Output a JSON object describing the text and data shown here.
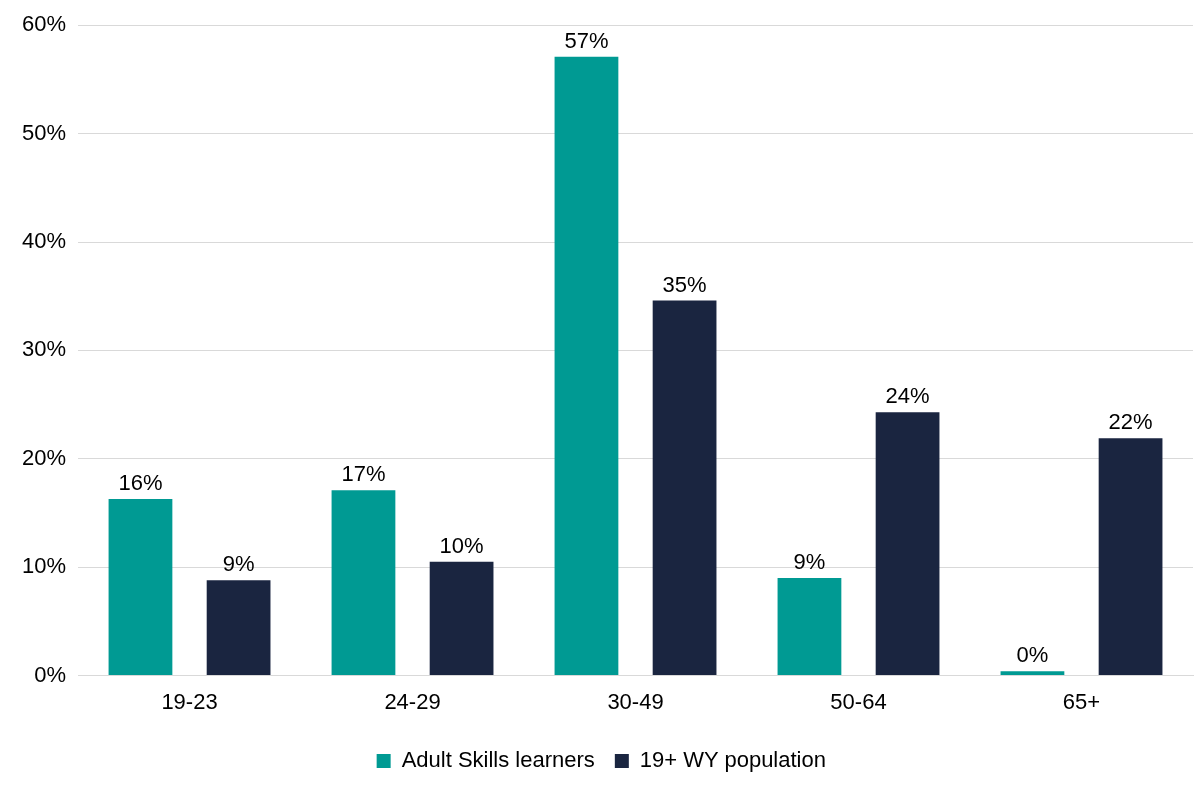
{
  "chart_data": {
    "type": "bar",
    "categories": [
      "19-23",
      "24-29",
      "30-49",
      "50-64",
      "65+"
    ],
    "series": [
      {
        "name": "Adult Skills learners",
        "color": "#009a93",
        "values": [
          16.3,
          17.1,
          57.1,
          9.0,
          0.4
        ],
        "value_labels": [
          "16%",
          "17%",
          "57%",
          "9%",
          "0%"
        ]
      },
      {
        "name": "19+ WY population",
        "color": "#1a2540",
        "values": [
          8.8,
          10.5,
          34.6,
          24.3,
          21.9
        ],
        "value_labels": [
          "9%",
          "10%",
          "35%",
          "24%",
          "22%"
        ]
      }
    ],
    "ylim": [
      0,
      60
    ],
    "yticks": [
      {
        "value": 0,
        "label": "0%"
      },
      {
        "value": 10,
        "label": "10%"
      },
      {
        "value": 20,
        "label": "20%"
      },
      {
        "value": 30,
        "label": "30%"
      },
      {
        "value": 40,
        "label": "40%"
      },
      {
        "value": 50,
        "label": "50%"
      },
      {
        "value": 60,
        "label": "60%"
      }
    ],
    "grid": "y",
    "legend": "bottom"
  }
}
